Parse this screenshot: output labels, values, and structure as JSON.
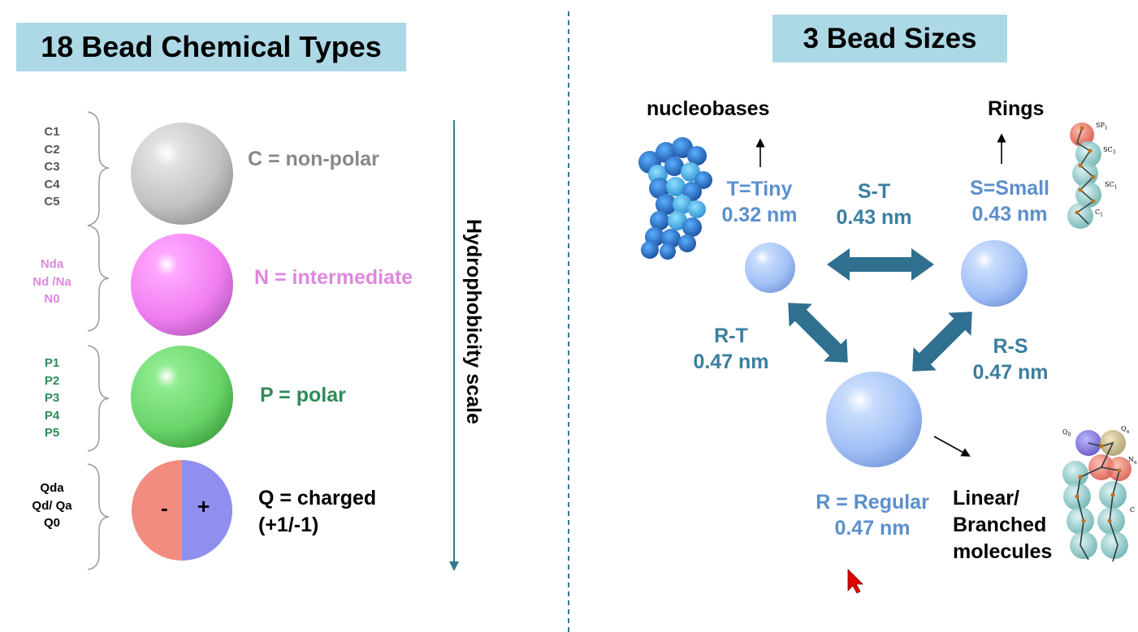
{
  "left_title": "18 Bead Chemical Types",
  "right_title": "3 Bead Sizes",
  "bead_types": [
    {
      "codes": [
        "C1",
        "C2",
        "C3",
        "C4",
        "C5"
      ],
      "label": "C = non-polar",
      "color": "#888888"
    },
    {
      "codes": [
        "Nda",
        "Nd /Na",
        "N0"
      ],
      "label": "N = intermediate",
      "color": "#dd88dd"
    },
    {
      "codes": [
        "P1",
        "P2",
        "P3",
        "P4",
        "P5"
      ],
      "label": "P = polar",
      "color": "#2e8b57"
    },
    {
      "codes": [
        "Qda",
        "Qd/ Qa",
        "Q0"
      ],
      "label_line1": "Q = charged",
      "label_line2": "(+1/-1)",
      "color": "#000000",
      "minus": "-",
      "plus": "+"
    }
  ],
  "scale_label": "Hydrophobicity scale",
  "sizes": {
    "tiny": {
      "name": "T=Tiny",
      "value": "0.32 nm"
    },
    "small": {
      "name": "S=Small",
      "value": "0.43 nm"
    },
    "regular": {
      "name": "R = Regular",
      "value": "0.47 nm"
    }
  },
  "pairs": {
    "st": {
      "name": "S-T",
      "value": "0.43 nm"
    },
    "rt": {
      "name": "R-T",
      "value": "0.47 nm"
    },
    "rs": {
      "name": "R-S",
      "value": "0.47 nm"
    }
  },
  "examples": {
    "nucleobases": "nucleobases",
    "rings": "Rings",
    "linear_line1": "Linear/",
    "linear_line2": "Branched",
    "linear_line3": "molecules"
  },
  "molecule_labels": {
    "sp1": "SP",
    "sc3": "SC",
    "sc1": "SC",
    "c1": "C",
    "q0": "Q",
    "qa": "Q",
    "na": "N",
    "c": "C"
  },
  "colors": {
    "title_bg": "#add8e6",
    "arrow_teal": "#2f6f8f",
    "scale_line": "#2f7b8c",
    "bead_blue": "#a8c8f8",
    "charged_red": "#f28a7c",
    "charged_blue": "#8c8cf0"
  }
}
